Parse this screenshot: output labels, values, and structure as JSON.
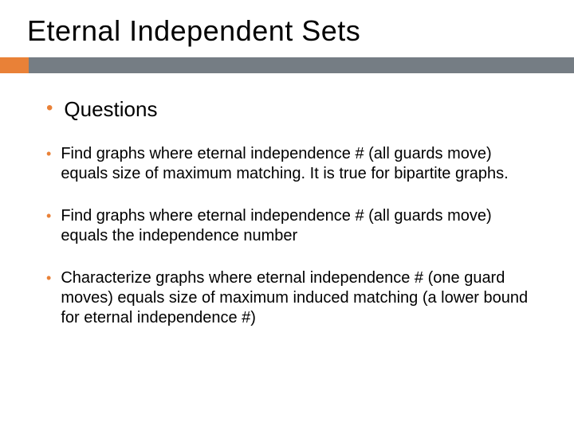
{
  "colors": {
    "accent_orange": "#e98137",
    "accent_gray": "#757d84",
    "text": "#000000",
    "background": "#ffffff"
  },
  "title": "Eternal Independent Sets",
  "main_bullet": "Questions",
  "bullets": [
    "Find graphs where eternal independence # (all guards move) equals size of maximum matching. It is true for bipartite graphs.",
    "Find graphs where eternal independence # (all guards move) equals the independence number",
    "Characterize graphs where eternal independence # (one guard moves) equals size of maximum induced matching (a lower bound for eternal independence #)"
  ],
  "typography": {
    "title_fontsize": 36,
    "main_bullet_fontsize": 26,
    "sub_bullet_fontsize": 20,
    "font_family": "Arial"
  },
  "layout": {
    "accent_bar_height": 20,
    "accent_orange_width": 36,
    "slide_width": 720,
    "slide_height": 540
  }
}
